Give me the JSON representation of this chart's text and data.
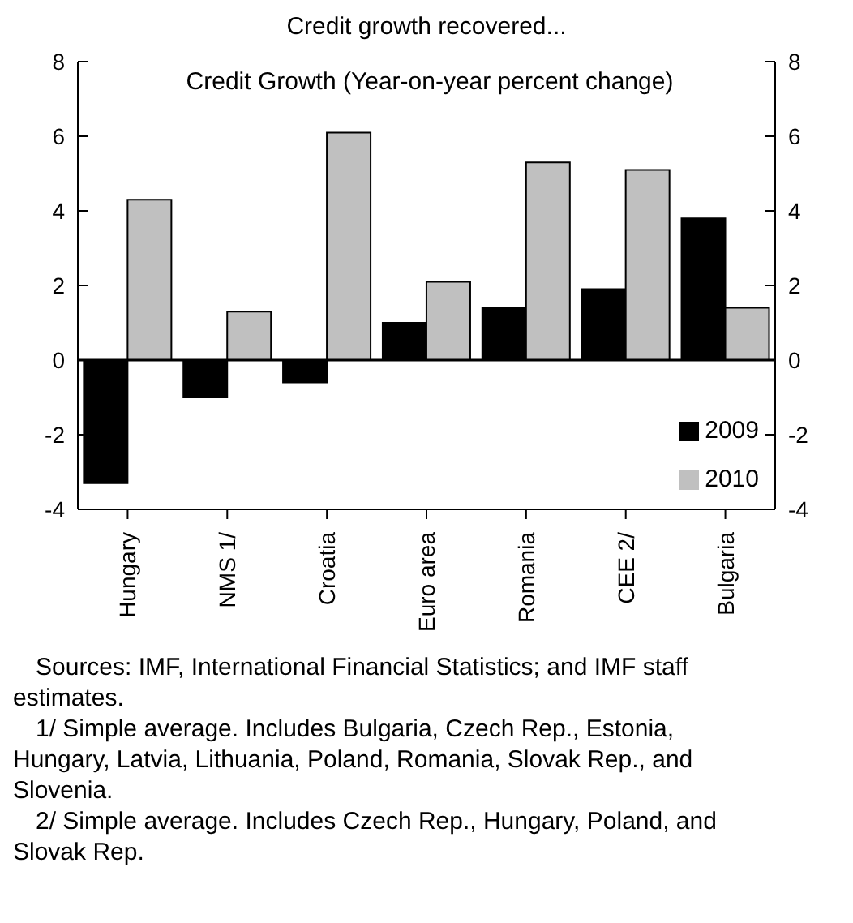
{
  "chart_data": {
    "type": "bar",
    "title": "Credit growth recovered...",
    "subtitle": "Credit Growth (Year-on-year percent change)",
    "categories": [
      "Hungary",
      "NMS 1/",
      "Croatia",
      "Euro area",
      "Romania",
      "CEE 2/",
      "Bulgaria"
    ],
    "series": [
      {
        "name": "2009",
        "color": "#000000",
        "values": [
          -3.3,
          -1.0,
          -0.6,
          1.0,
          1.4,
          1.9,
          3.8
        ]
      },
      {
        "name": "2010",
        "color": "#c0c0c0",
        "values": [
          4.3,
          1.3,
          6.1,
          2.1,
          5.3,
          5.1,
          1.4
        ]
      }
    ],
    "ylim": [
      -4,
      8
    ],
    "yticks": [
      -4,
      -2,
      0,
      2,
      4,
      6,
      8
    ],
    "y2lim": [
      -4,
      8
    ],
    "y2ticks": [
      -4,
      -2,
      0,
      2,
      4,
      6,
      8
    ],
    "grid": false,
    "legend": "bottom right",
    "ref_lines": [
      {
        "axis": "y",
        "value": 0,
        "color": "#000000"
      }
    ],
    "annotations": [
      "Sources: IMF, International Financial Statistics; and IMF staff estimates.",
      "1/ Simple average. Includes Bulgaria, Czech Rep., Estonia, Hungary, Latvia, Lithuania, Poland, Romania, Slovak Rep., and Slovenia.",
      "2/ Simple average. Includes Czech Rep., Hungary, Poland, and Slovak Rep."
    ]
  }
}
